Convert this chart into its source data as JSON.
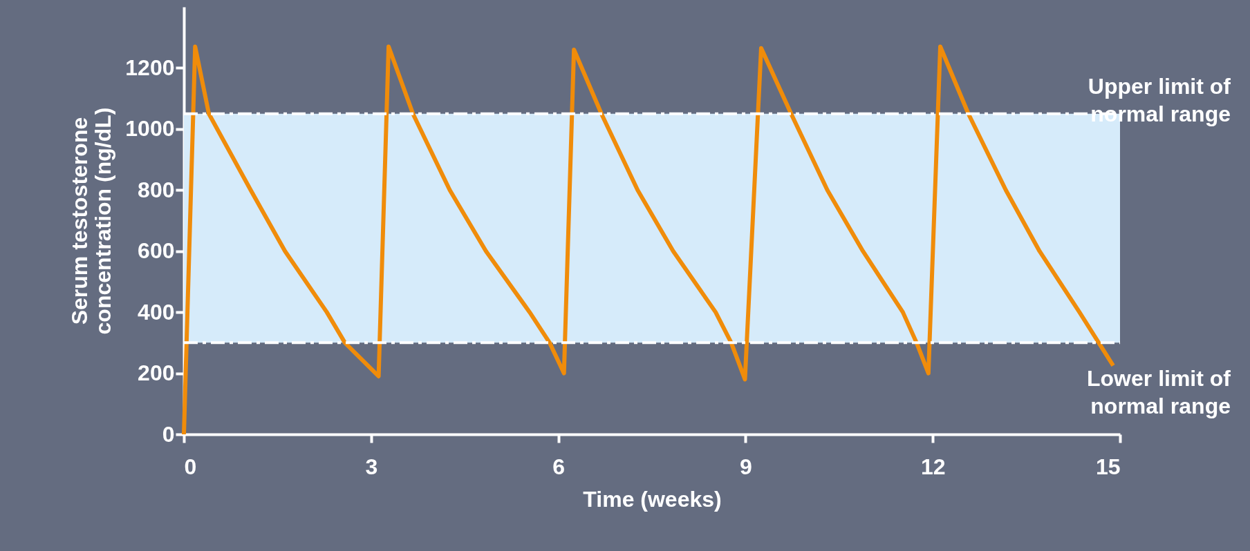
{
  "chart_data": {
    "type": "line",
    "xlabel": "Time (weeks)",
    "ylabel": "Serum testosterone\nconcentration (ng/dL)",
    "series": [
      {
        "color": "#f08c0a",
        "x": [
          0,
          0.18,
          0.4,
          1.07,
          1.62,
          2.29,
          2.58,
          3.12,
          3.28,
          3.67,
          4.26,
          4.84,
          5.54,
          5.86,
          6.09,
          6.25,
          6.69,
          7.27,
          7.84,
          8.52,
          8.77,
          8.99,
          9.25,
          9.73,
          10.31,
          10.88,
          11.52,
          11.74,
          11.93,
          12.12,
          12.57,
          13.17,
          13.71,
          14.35,
          14.89
        ],
        "values": [
          0,
          1270,
          1050,
          800,
          600,
          400,
          300,
          190,
          1270,
          1050,
          800,
          600,
          400,
          300,
          200,
          1260,
          1050,
          800,
          600,
          400,
          300,
          180,
          1265,
          1050,
          800,
          600,
          400,
          300,
          200,
          1270,
          1050,
          800,
          600,
          400,
          225
        ]
      }
    ],
    "xlim": [
      0,
      15
    ],
    "xticks": [
      0,
      3,
      6,
      9,
      12,
      15
    ],
    "ylim": [
      0,
      1400
    ],
    "yticks": [
      0,
      200,
      400,
      600,
      800,
      1000,
      1200
    ],
    "bands": [
      {
        "axis": "y",
        "from": 300,
        "to": 1050,
        "color": "#d6ebfa"
      }
    ],
    "ref_lines": [
      {
        "axis": "y",
        "value": 1050,
        "label": "Upper limit of\nnormal range",
        "color": "#ffffff",
        "line_style": "dashed"
      },
      {
        "axis": "y",
        "value": 300,
        "label": "Lower limit of\nnormal range",
        "color": "#ffffff",
        "line_style": "dashed"
      }
    ],
    "grid": false,
    "marker": "none",
    "line_style": "solid"
  }
}
